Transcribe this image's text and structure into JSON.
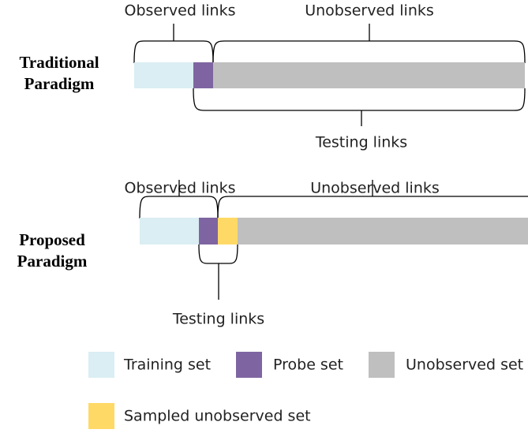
{
  "paradigms": [
    {
      "label": [
        "Traditional",
        "Paradigm"
      ],
      "observed": "Observed links",
      "unobserved": "Unobserved links",
      "testing": "Testing links"
    },
    {
      "label": [
        "Proposed",
        "Paradigm"
      ],
      "observed": "Observed links",
      "unobserved": "Unobserved links",
      "testing": "Testing links"
    }
  ],
  "legend": [
    "Training set",
    "Probe set",
    "Unobserved set",
    "Sampled unobserved set"
  ]
}
